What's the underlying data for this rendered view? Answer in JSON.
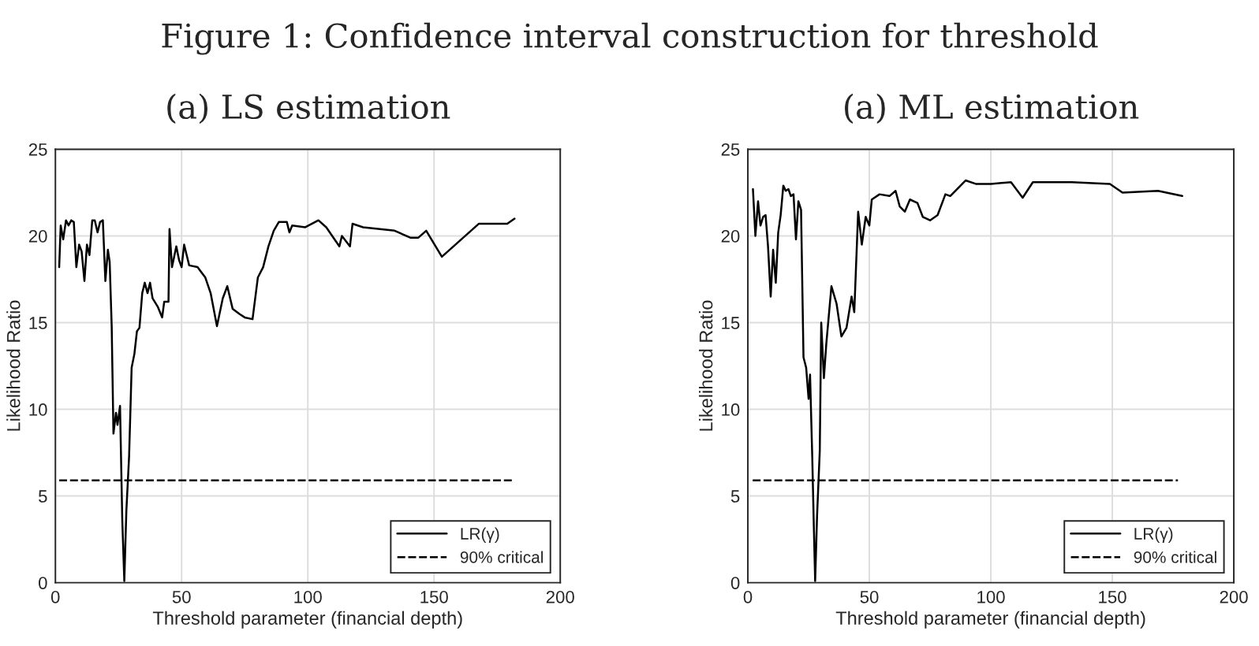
{
  "chart_data": [
    {
      "type": "line",
      "title": "(a) LS estimation",
      "annotations": [
        "Figure 1: Confidence interval construction for threshold"
      ],
      "xlabel": "Threshold parameter (financial depth)",
      "ylabel": "Likelihood Ratio",
      "xlim": [
        0,
        200
      ],
      "ylim": [
        0,
        25
      ],
      "xticks": [
        0,
        50,
        100,
        150,
        200
      ],
      "yticks": [
        0,
        5,
        10,
        15,
        20,
        25
      ],
      "grid": true,
      "legend": "bottom right",
      "series": [
        {
          "name": "LR(γ)",
          "color": "#000000",
          "line_style": "solid",
          "x": [
            1.5,
            2.1,
            3.1,
            4.2,
            5.2,
            6.3,
            7.3,
            8.3,
            9.4,
            10.4,
            11.5,
            12.5,
            13.5,
            14.6,
            15.6,
            16.7,
            17.7,
            18.8,
            19.8,
            20.8,
            21.5,
            22.3,
            23,
            24,
            24.6,
            25.6,
            26.5,
            27.3,
            28.1,
            29.2,
            30.2,
            31.3,
            32.3,
            33.3,
            34.4,
            35.4,
            36.5,
            37.5,
            38.5,
            40.6,
            42.3,
            43.1,
            44.8,
            45.2,
            46.2,
            47.9,
            49,
            50,
            51,
            52,
            53,
            56.3,
            59.4,
            61.5,
            64,
            66.3,
            68.1,
            70.2,
            72.9,
            75,
            78.1,
            80.2,
            82.3,
            84.4,
            86.5,
            88.5,
            91.7,
            92.7,
            93.8,
            99,
            104.2,
            107.3,
            112.5,
            113.5,
            116.7,
            117.7,
            121.9,
            134.4,
            140.6,
            143.8,
            146.9,
            153.1,
            167.7,
            179,
            181.9
          ],
          "values": [
            18.2,
            20.6,
            19.8,
            20.9,
            20.6,
            20.9,
            20.8,
            18.2,
            19.5,
            19.1,
            17.4,
            19.5,
            18.9,
            20.9,
            20.9,
            20.2,
            20.8,
            20.9,
            17.4,
            19.2,
            18.5,
            14.8,
            8.6,
            9.8,
            9.1,
            10.2,
            3.6,
            0.1,
            4.1,
            7.3,
            12.4,
            13.2,
            14.5,
            14.7,
            16.7,
            17.3,
            16.7,
            17.3,
            16.4,
            15.9,
            15.3,
            16.2,
            16.2,
            20.4,
            18.2,
            19.4,
            18.6,
            18.2,
            19.5,
            18.9,
            18.3,
            18.2,
            17.6,
            16.7,
            14.8,
            16.4,
            17.1,
            15.8,
            15.5,
            15.3,
            15.2,
            17.6,
            18.2,
            19.4,
            20.3,
            20.8,
            20.8,
            20.2,
            20.6,
            20.5,
            20.9,
            20.5,
            19.4,
            20,
            19.4,
            20.7,
            20.5,
            20.3,
            19.9,
            19.9,
            20.3,
            18.8,
            20.7,
            20.7,
            21
          ]
        },
        {
          "name": "90% critical",
          "color": "#000000",
          "line_style": "dashed",
          "x": [
            1.5,
            181.9
          ],
          "values": [
            5.9,
            5.9
          ]
        }
      ]
    },
    {
      "type": "line",
      "title": "(a) ML estimation",
      "xlabel": "Threshold parameter (financial depth)",
      "ylabel": "Likelihood Ratio",
      "xlim": [
        0,
        200
      ],
      "ylim": [
        0,
        25
      ],
      "xticks": [
        0,
        50,
        100,
        150,
        200
      ],
      "yticks": [
        0,
        5,
        10,
        15,
        20,
        25
      ],
      "grid": true,
      "legend": "bottom right",
      "series": [
        {
          "name": "LR(γ)",
          "color": "#000000",
          "line_style": "solid",
          "x": [
            2.1,
            3.1,
            4.2,
            5.2,
            6.3,
            7.3,
            8.3,
            9.4,
            10.4,
            11.5,
            12.5,
            13.5,
            14.6,
            15.6,
            16.7,
            17.7,
            18.8,
            19.8,
            20.8,
            21.9,
            22.9,
            24,
            25,
            25.6,
            26.5,
            27.1,
            27.7,
            28.5,
            29.6,
            30.2,
            31.3,
            32.3,
            34.4,
            36.5,
            38.5,
            40.6,
            42.7,
            43.8,
            45.4,
            46.9,
            48.5,
            50,
            51,
            54.2,
            58.3,
            60.8,
            62.5,
            64.6,
            66.7,
            69.8,
            72,
            75,
            78.1,
            81.3,
            83.3,
            89.6,
            93.8,
            100,
            108.3,
            113.1,
            117.3,
            133.3,
            149,
            154.2,
            168.8,
            178.8
          ],
          "values": [
            22.7,
            20,
            22,
            20.6,
            21.1,
            21.2,
            19.4,
            16.5,
            19.2,
            17.3,
            20.2,
            21.2,
            22.9,
            22.6,
            22.7,
            22.3,
            22.4,
            19.8,
            22,
            21.5,
            13,
            12.4,
            10.6,
            12,
            7.3,
            3.6,
            0.1,
            3.9,
            7.6,
            15,
            11.8,
            13.8,
            17.1,
            16.1,
            14.2,
            14.7,
            16.5,
            15.6,
            21.4,
            19.5,
            21.1,
            20.6,
            22.1,
            22.4,
            22.3,
            22.6,
            21.7,
            21.4,
            22.1,
            21.9,
            21.1,
            20.9,
            21.2,
            22.4,
            22.3,
            23.2,
            23,
            23,
            23.1,
            22.2,
            23.1,
            23.1,
            23,
            22.5,
            22.6,
            22.3
          ]
        },
        {
          "name": "90% critical",
          "color": "#000000",
          "line_style": "dashed",
          "x": [
            2,
            177
          ],
          "values": [
            5.9,
            5.9
          ]
        }
      ]
    }
  ]
}
